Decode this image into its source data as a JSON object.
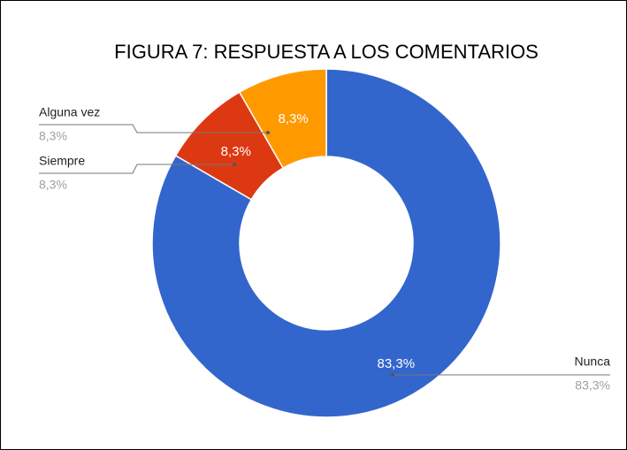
{
  "chart_data": {
    "type": "pie",
    "title": "FIGURA 7: RESPUESTA A LOS COMENTARIOS",
    "categories": [
      "Nunca",
      "Siempre",
      "Alguna vez"
    ],
    "values": [
      83.3,
      8.3,
      8.3
    ],
    "value_labels": [
      "83,3%",
      "8,3%",
      "8,3%"
    ],
    "colors": [
      "#3366cc",
      "#dc3912",
      "#ff9900"
    ]
  }
}
